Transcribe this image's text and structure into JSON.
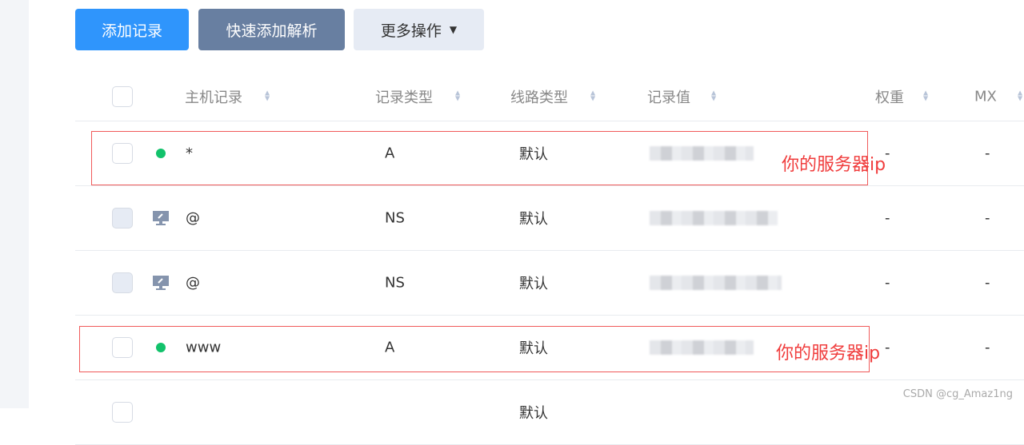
{
  "toolbar": {
    "add": "添加记录",
    "quick_add": "快速添加解析",
    "more": "更多操作",
    "more_caret": "▼"
  },
  "columns": [
    "主机记录",
    "记录类型",
    "线路类型",
    "记录值",
    "权重",
    "MX"
  ],
  "rows": [
    {
      "host": "*",
      "type": "A",
      "line": "默认",
      "weight": "-",
      "mx": "-",
      "status": "enabled"
    },
    {
      "host": "@",
      "type": "NS",
      "line": "默认",
      "weight": "-",
      "mx": "-",
      "status": "system"
    },
    {
      "host": "@",
      "type": "NS",
      "line": "默认",
      "weight": "-",
      "mx": "-",
      "status": "system"
    },
    {
      "host": "www",
      "type": "A",
      "line": "默认",
      "weight": "-",
      "mx": "-",
      "status": "enabled"
    },
    {
      "host": "",
      "type": "",
      "line": "默认",
      "weight": "",
      "mx": "",
      "status": ""
    }
  ],
  "annotations": [
    "你的服务器ip",
    "你的服务器ip"
  ],
  "watermark": "CSDN @cg_Amaz1ng",
  "colors": {
    "primary": "#2f95fc",
    "secondary": "#687fa1",
    "enabled": "#12c26b",
    "annotation": "#f03c3c"
  }
}
